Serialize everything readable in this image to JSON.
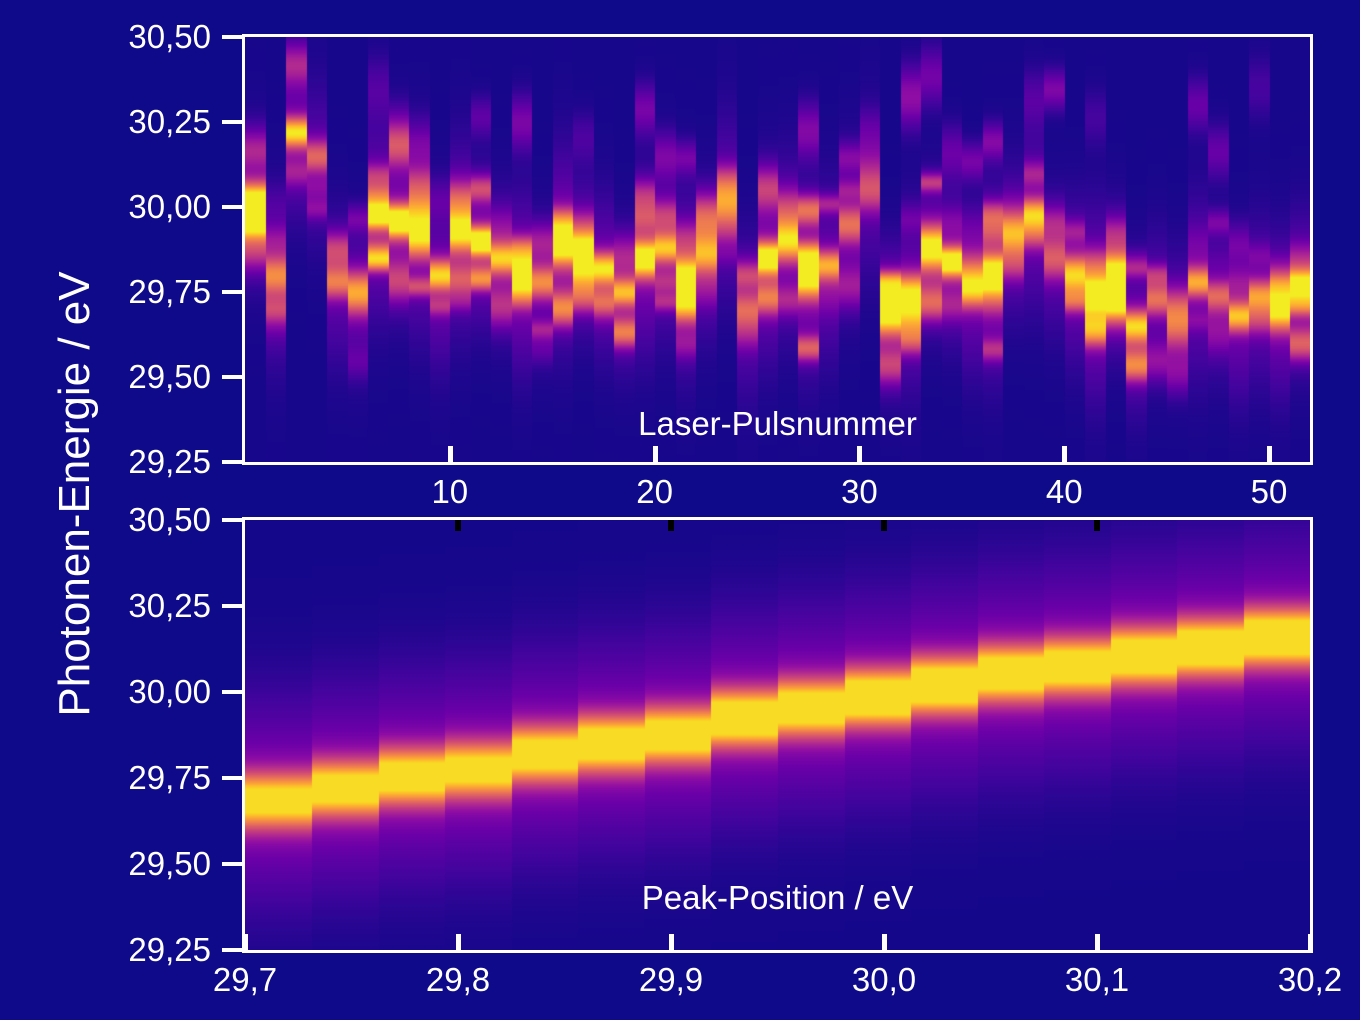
{
  "figure": {
    "background": "#0f0a89",
    "axis_color": "#ffffff",
    "text_color": "#ffffff",
    "colormap": "plasma",
    "y_axis_title": "Photonen-Energie / eV"
  },
  "chart_data": [
    {
      "id": "pulse-resolved-spectra",
      "type": "heatmap",
      "title": "",
      "xlabel": "Laser-Pulsnummer",
      "ylabel": "Photonen-Energie / eV",
      "xlim": [
        0,
        52
      ],
      "ylim": [
        29.25,
        30.5
      ],
      "grid": false,
      "legend": "none",
      "x_ticks": [
        {
          "v": 10,
          "label": "10"
        },
        {
          "v": 20,
          "label": "20"
        },
        {
          "v": 30,
          "label": "30"
        },
        {
          "v": 40,
          "label": "40"
        },
        {
          "v": 50,
          "label": "50"
        }
      ],
      "y_ticks": [
        {
          "v": 30.5,
          "label": "30,50"
        },
        {
          "v": 30.25,
          "label": "30,25"
        },
        {
          "v": 30.0,
          "label": "30,00"
        },
        {
          "v": 29.75,
          "label": "29,75"
        },
        {
          "v": 29.5,
          "label": "29,50"
        },
        {
          "v": 29.25,
          "label": "29,25"
        }
      ],
      "speckle": {
        "seed": 77,
        "sigma_main_min": 0.03,
        "sigma_main_jitter": 0.018,
        "pedestal_sigma": 0.13,
        "pedestal_amp": 0.2,
        "base_level": 0.02
      },
      "columns": [
        {
          "pulse": 1,
          "center": 30.02,
          "amp": 0.88
        },
        {
          "pulse": 2,
          "center": 29.8,
          "amp": 0.55
        },
        {
          "pulse": 3,
          "center": 30.22,
          "amp": 0.75
        },
        {
          "pulse": 4,
          "center": 30.15,
          "amp": 0.45
        },
        {
          "pulse": 5,
          "center": 29.78,
          "amp": 0.5
        },
        {
          "pulse": 6,
          "center": 29.75,
          "amp": 0.62
        },
        {
          "pulse": 7,
          "center": 29.98,
          "amp": 0.95
        },
        {
          "pulse": 8,
          "center": 29.96,
          "amp": 1.0
        },
        {
          "pulse": 9,
          "center": 29.92,
          "amp": 0.78
        },
        {
          "pulse": 10,
          "center": 29.8,
          "amp": 0.72
        },
        {
          "pulse": 11,
          "center": 29.93,
          "amp": 0.82
        },
        {
          "pulse": 12,
          "center": 29.9,
          "amp": 1.0
        },
        {
          "pulse": 13,
          "center": 29.85,
          "amp": 0.7
        },
        {
          "pulse": 14,
          "center": 29.8,
          "amp": 0.95
        },
        {
          "pulse": 15,
          "center": 29.78,
          "amp": 0.55
        },
        {
          "pulse": 16,
          "center": 29.9,
          "amp": 1.0
        },
        {
          "pulse": 17,
          "center": 29.87,
          "amp": 0.95
        },
        {
          "pulse": 18,
          "center": 29.82,
          "amp": 0.75
        },
        {
          "pulse": 19,
          "center": 29.75,
          "amp": 0.65
        },
        {
          "pulse": 20,
          "center": 29.85,
          "amp": 0.9
        },
        {
          "pulse": 21,
          "center": 29.88,
          "amp": 0.68
        },
        {
          "pulse": 22,
          "center": 29.8,
          "amp": 0.78
        },
        {
          "pulse": 23,
          "center": 29.86,
          "amp": 0.6
        },
        {
          "pulse": 24,
          "center": 30.02,
          "amp": 0.58
        },
        {
          "pulse": 25,
          "center": 29.7,
          "amp": 0.45
        },
        {
          "pulse": 26,
          "center": 29.85,
          "amp": 0.95
        },
        {
          "pulse": 27,
          "center": 29.9,
          "amp": 0.72
        },
        {
          "pulse": 28,
          "center": 29.8,
          "amp": 0.9
        },
        {
          "pulse": 29,
          "center": 29.83,
          "amp": 0.62
        },
        {
          "pulse": 30,
          "center": 29.95,
          "amp": 0.48
        },
        {
          "pulse": 31,
          "center": 30.05,
          "amp": 0.38
        },
        {
          "pulse": 32,
          "center": 29.7,
          "amp": 0.95
        },
        {
          "pulse": 33,
          "center": 29.75,
          "amp": 0.72
        },
        {
          "pulse": 34,
          "center": 29.88,
          "amp": 0.85
        },
        {
          "pulse": 35,
          "center": 29.84,
          "amp": 0.95
        },
        {
          "pulse": 36,
          "center": 29.76,
          "amp": 0.7
        },
        {
          "pulse": 37,
          "center": 29.8,
          "amp": 1.0
        },
        {
          "pulse": 38,
          "center": 29.92,
          "amp": 0.62
        },
        {
          "pulse": 39,
          "center": 29.98,
          "amp": 0.68
        },
        {
          "pulse": 40,
          "center": 29.85,
          "amp": 0.42
        },
        {
          "pulse": 41,
          "center": 29.8,
          "amp": 0.72
        },
        {
          "pulse": 42,
          "center": 29.74,
          "amp": 0.95
        },
        {
          "pulse": 43,
          "center": 29.8,
          "amp": 0.92
        },
        {
          "pulse": 44,
          "center": 29.65,
          "amp": 0.72
        },
        {
          "pulse": 45,
          "center": 29.73,
          "amp": 0.48
        },
        {
          "pulse": 46,
          "center": 29.7,
          "amp": 0.42
        },
        {
          "pulse": 47,
          "center": 29.78,
          "amp": 0.62
        },
        {
          "pulse": 48,
          "center": 29.74,
          "amp": 0.45
        },
        {
          "pulse": 49,
          "center": 29.68,
          "amp": 0.68
        },
        {
          "pulse": 50,
          "center": 29.74,
          "amp": 0.58
        },
        {
          "pulse": 51,
          "center": 29.7,
          "amp": 0.78
        },
        {
          "pulse": 52,
          "center": 29.77,
          "amp": 0.88
        }
      ]
    },
    {
      "id": "peak-position-correlation",
      "type": "heatmap",
      "title": "",
      "xlabel": "Peak-Position / eV",
      "ylabel": "Photonen-Energie / eV",
      "xlim": [
        29.7,
        30.2
      ],
      "ylim": [
        29.25,
        30.5
      ],
      "grid": false,
      "legend": "none",
      "x_ticks": [
        {
          "v": 29.7,
          "label": "29,7"
        },
        {
          "v": 29.8,
          "label": "29,8"
        },
        {
          "v": 29.9,
          "label": "29,9"
        },
        {
          "v": 30.0,
          "label": "30,0"
        },
        {
          "v": 30.1,
          "label": "30,1"
        },
        {
          "v": 30.2,
          "label": "30,2"
        }
      ],
      "y_ticks": [
        {
          "v": 30.5,
          "label": "30,50"
        },
        {
          "v": 30.25,
          "label": "30,25"
        },
        {
          "v": 30.0,
          "label": "30,00"
        },
        {
          "v": 29.75,
          "label": "29,75"
        },
        {
          "v": 29.5,
          "label": "29,50"
        },
        {
          "v": 29.25,
          "label": "29,25"
        }
      ],
      "top_black_ticks": [
        29.8,
        29.9,
        30.0,
        30.1
      ],
      "profile": {
        "sigma_main": 0.055,
        "sigma_halo": 0.2,
        "halo_amp": 0.26,
        "base_level": 0.015,
        "cap": 0.93
      },
      "columns": [
        {
          "x": 29.7156,
          "center": 29.685,
          "amp": 0.8
        },
        {
          "x": 29.7469,
          "center": 29.72,
          "amp": 0.84
        },
        {
          "x": 29.7781,
          "center": 29.755,
          "amp": 0.86
        },
        {
          "x": 29.8094,
          "center": 29.775,
          "amp": 0.8
        },
        {
          "x": 29.8406,
          "center": 29.82,
          "amp": 0.86
        },
        {
          "x": 29.8719,
          "center": 29.85,
          "amp": 0.9
        },
        {
          "x": 29.9031,
          "center": 29.875,
          "amp": 0.88
        },
        {
          "x": 29.9344,
          "center": 29.925,
          "amp": 0.95
        },
        {
          "x": 29.9656,
          "center": 29.955,
          "amp": 0.9
        },
        {
          "x": 29.9969,
          "center": 29.985,
          "amp": 0.97
        },
        {
          "x": 30.0281,
          "center": 30.02,
          "amp": 0.97
        },
        {
          "x": 30.0594,
          "center": 30.055,
          "amp": 0.92
        },
        {
          "x": 30.0906,
          "center": 30.075,
          "amp": 0.9
        },
        {
          "x": 30.1219,
          "center": 30.105,
          "amp": 0.95
        },
        {
          "x": 30.1531,
          "center": 30.13,
          "amp": 0.97
        },
        {
          "x": 30.1844,
          "center": 30.16,
          "amp": 0.98
        }
      ]
    }
  ]
}
